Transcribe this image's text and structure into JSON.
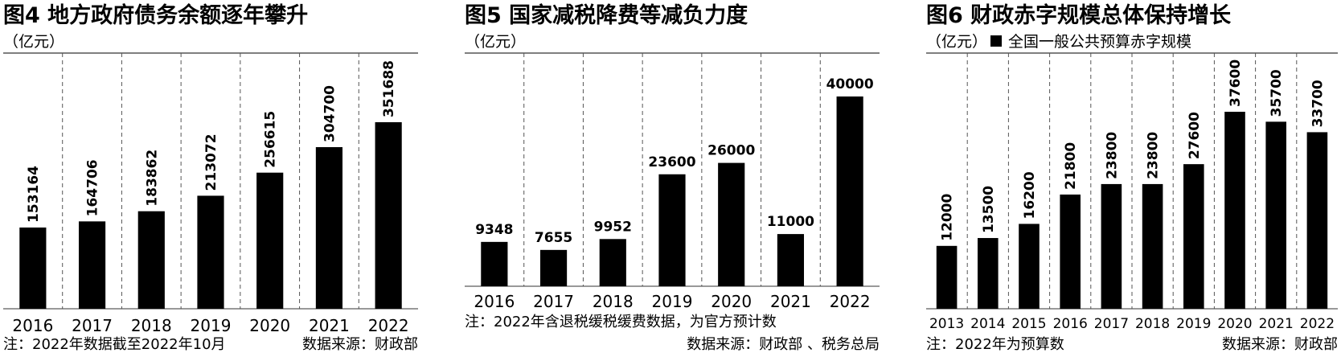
{
  "chart_data": [
    {
      "type": "bar",
      "title": "图4 地方政府债务余额逐年攀升",
      "unit": "（亿元）",
      "categories": [
        "2016",
        "2017",
        "2018",
        "2019",
        "2020",
        "2021",
        "2022"
      ],
      "values": [
        153164,
        164706,
        183862,
        213072,
        256615,
        304700,
        351688
      ],
      "data_labels": [
        "153164",
        "164706",
        "183862",
        "213072",
        "256615",
        "304700",
        "351688"
      ],
      "label_rotation": "vertical",
      "grid": "dashed vertical separators",
      "note": "注：2022年数据截至2022年10月",
      "source": "数据来源：财政部"
    },
    {
      "type": "bar",
      "title": "图5  国家减税降费等减负力度",
      "unit": "（亿元）",
      "categories": [
        "2016",
        "2017",
        "2018",
        "2019",
        "2020",
        "2021",
        "2022"
      ],
      "values": [
        9348,
        7655,
        9952,
        23600,
        26000,
        11000,
        40000
      ],
      "data_labels": [
        "9348",
        "7655",
        "9952",
        "23600",
        "26000",
        "11000",
        "40000"
      ],
      "label_rotation": "horizontal",
      "grid": "dashed vertical separators",
      "note": "注：2022年含退税缓税缓费数据，为官方预计数",
      "source": "数据来源：财政部 、税务总局"
    },
    {
      "type": "bar",
      "title": "图6 财政赤字规模总体保持增长",
      "unit": "（亿元）",
      "legend": "全国一般公共预算赤字规模",
      "legend_color": "#000000",
      "categories": [
        "2013",
        "2014",
        "2015",
        "2016",
        "2017",
        "2018",
        "2019",
        "2020",
        "2021",
        "2022"
      ],
      "values": [
        12000,
        13500,
        16200,
        21800,
        23800,
        23800,
        27600,
        37600,
        35700,
        33700
      ],
      "data_labels": [
        "12000",
        "13500",
        "16200",
        "21800",
        "23800",
        "23800",
        "27600",
        "37600",
        "35700",
        "33700"
      ],
      "label_rotation": "vertical",
      "grid": "dashed vertical separators",
      "note": "注：2022年为预算数",
      "source": "数据来源：财政部"
    }
  ],
  "colors": {
    "bar": "#000000",
    "axis": "#333333",
    "grid": "#555555",
    "text": "#111111"
  }
}
